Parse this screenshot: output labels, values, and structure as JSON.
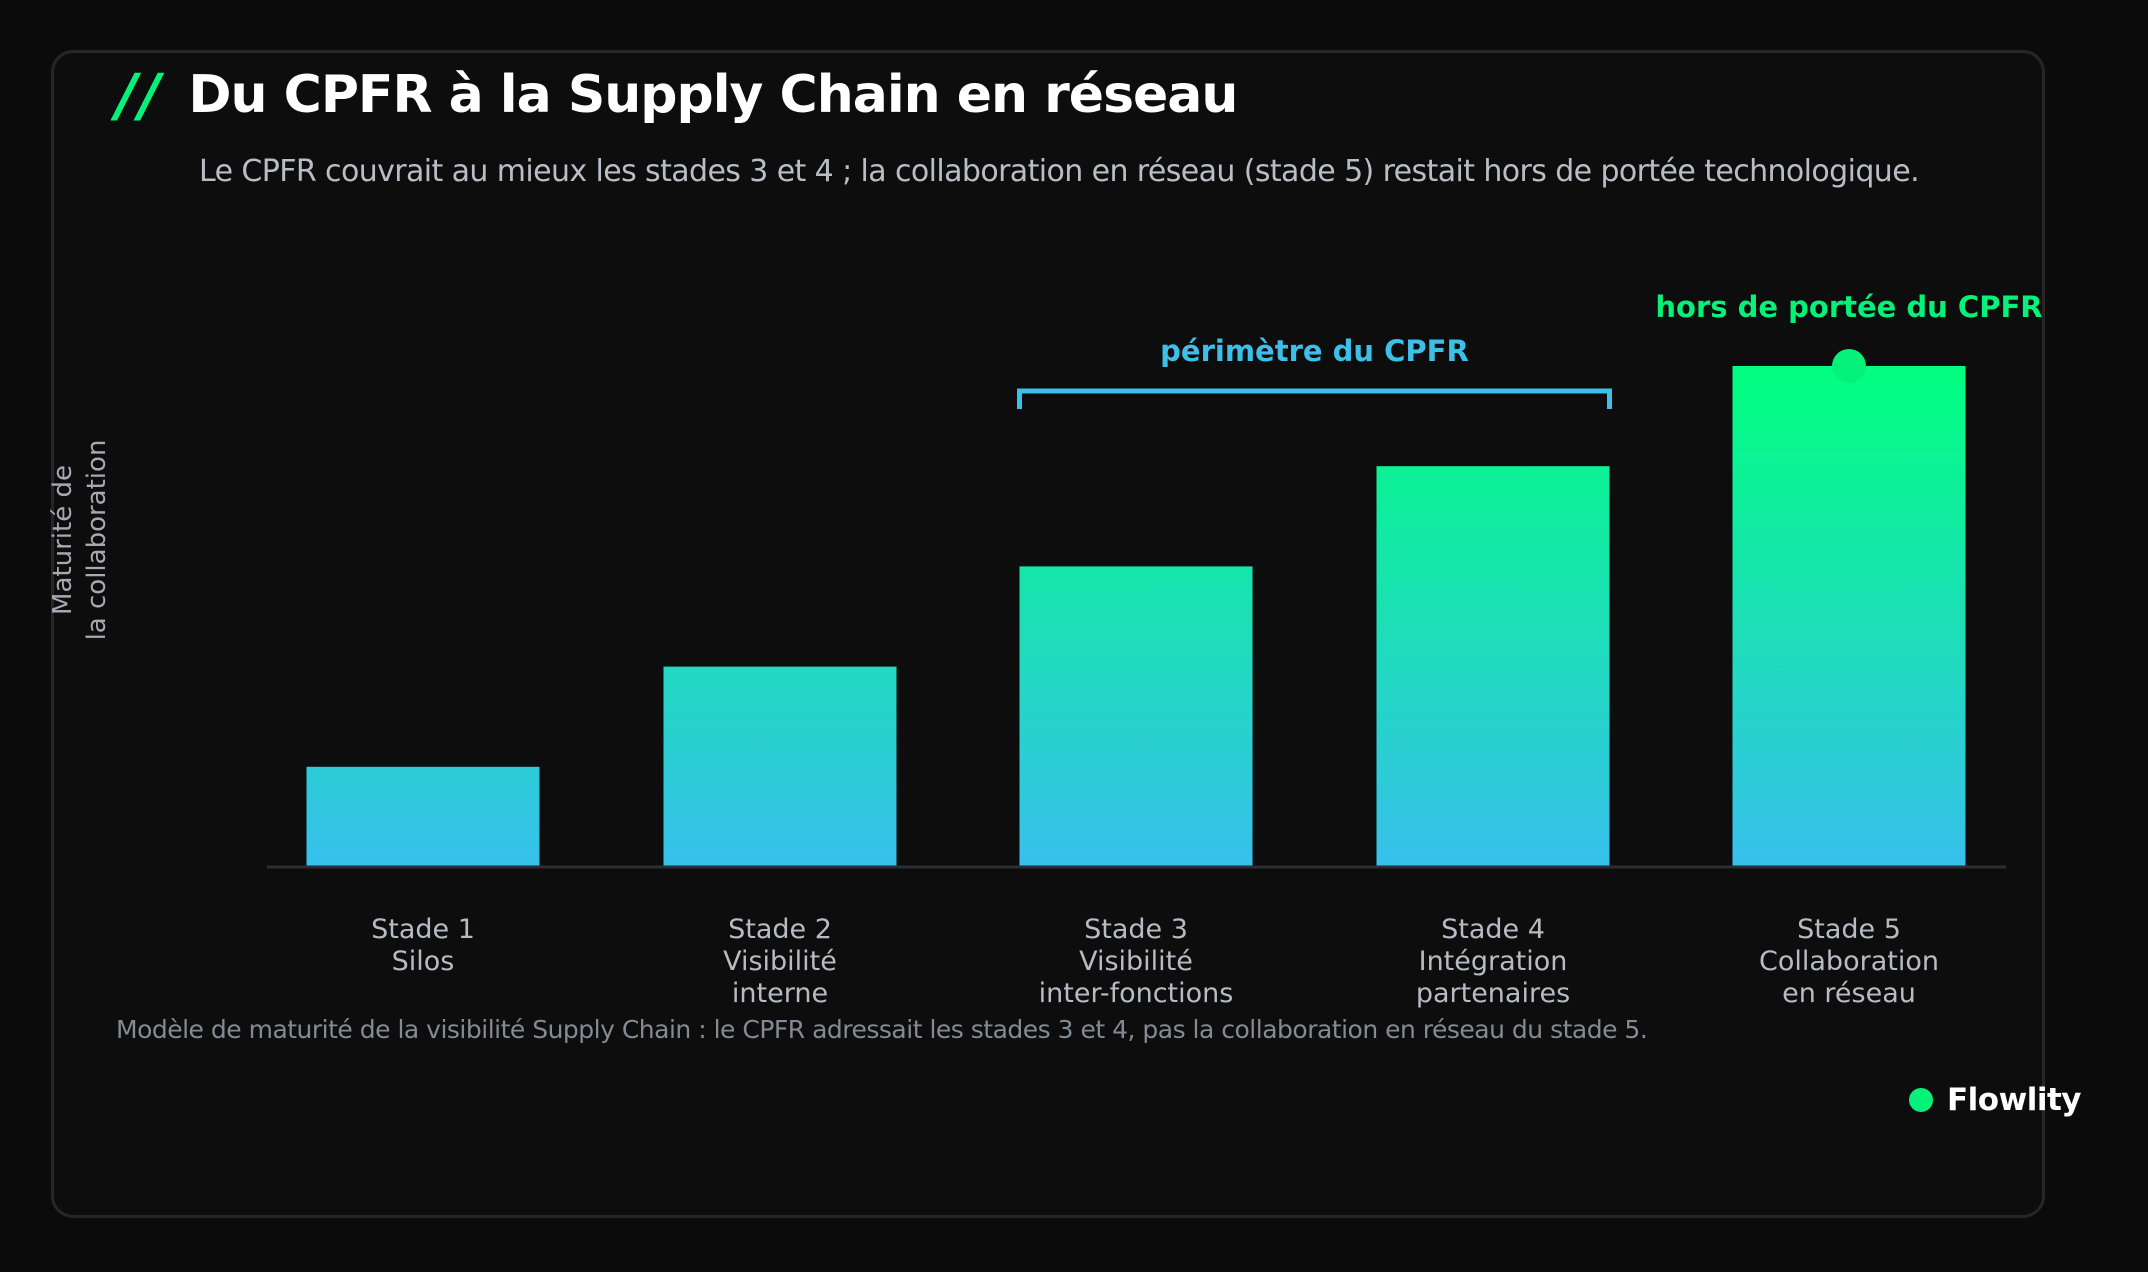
{
  "header": {
    "mark": "//",
    "title": "Du CPFR à la Supply Chain en réseau",
    "subtitle": "Le CPFR couvrait au mieux les stades 3 et 4 ; la collaboration en réseau (stade 5) restait hors de portée technologique."
  },
  "footnote": "Modèle de maturité de la visibilité Supply Chain : le CPFR adressait les stades 3 et 4, pas la collaboration en réseau du stade 5.",
  "brand": {
    "name": "Flowlity"
  },
  "colors": {
    "accent_green": "#05f27a",
    "accent_blue": "#3ebfe8",
    "bar_top_green": "#00ff7f",
    "bar_bottom_blue": "#37c0ec",
    "background": "#0d0d0d"
  },
  "chart_data": {
    "type": "bar",
    "title": "Du CPFR à la Supply Chain en réseau",
    "ylabel_lines": [
      "Maturité de",
      "la collaboration"
    ],
    "ylim": [
      0,
      5
    ],
    "grid": false,
    "categories": [
      {
        "lines": [
          "Stade 1",
          "Silos"
        ]
      },
      {
        "lines": [
          "Stade 2",
          "Visibilité",
          "interne"
        ]
      },
      {
        "lines": [
          "Stade 3",
          "Visibilité",
          "inter-fonctions"
        ]
      },
      {
        "lines": [
          "Stade 4",
          "Intégration",
          "partenaires"
        ]
      },
      {
        "lines": [
          "Stade 5",
          "Collaboration",
          "en réseau"
        ]
      }
    ],
    "values": [
      1,
      2,
      3,
      4,
      5
    ],
    "annotations": [
      {
        "text": "périmètre du CPFR",
        "type": "bracket",
        "from_category": 2,
        "to_category": 3,
        "color": "#3ebfe8"
      },
      {
        "text": "hors de portée du CPFR",
        "type": "marker",
        "category": 4,
        "color": "#05f27a"
      }
    ]
  }
}
